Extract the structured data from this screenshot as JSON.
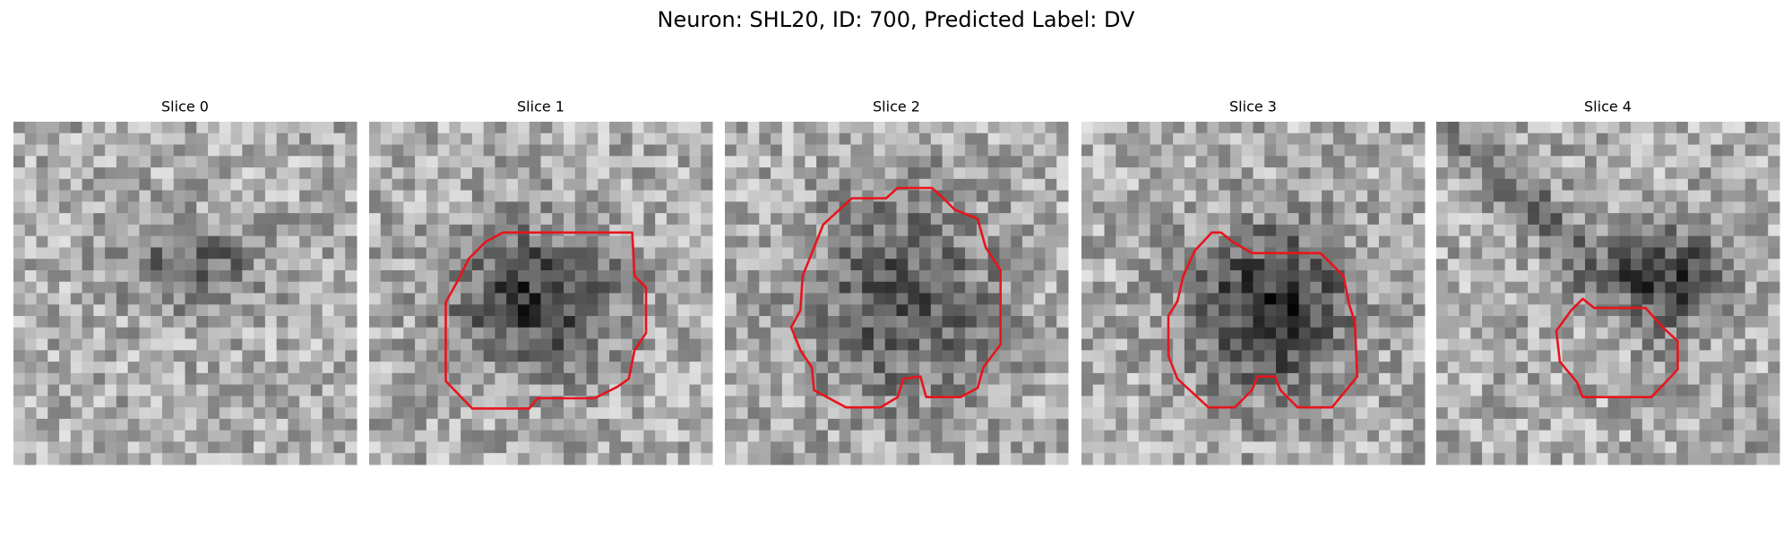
{
  "title": "Neuron: SHL20, ID: 700, Predicted Label: DV",
  "panels": [
    {
      "title": "Slice 0"
    },
    {
      "title": "Slice 1"
    },
    {
      "title": "Slice 2"
    },
    {
      "title": "Slice 3"
    },
    {
      "title": "Slice 4"
    }
  ]
}
